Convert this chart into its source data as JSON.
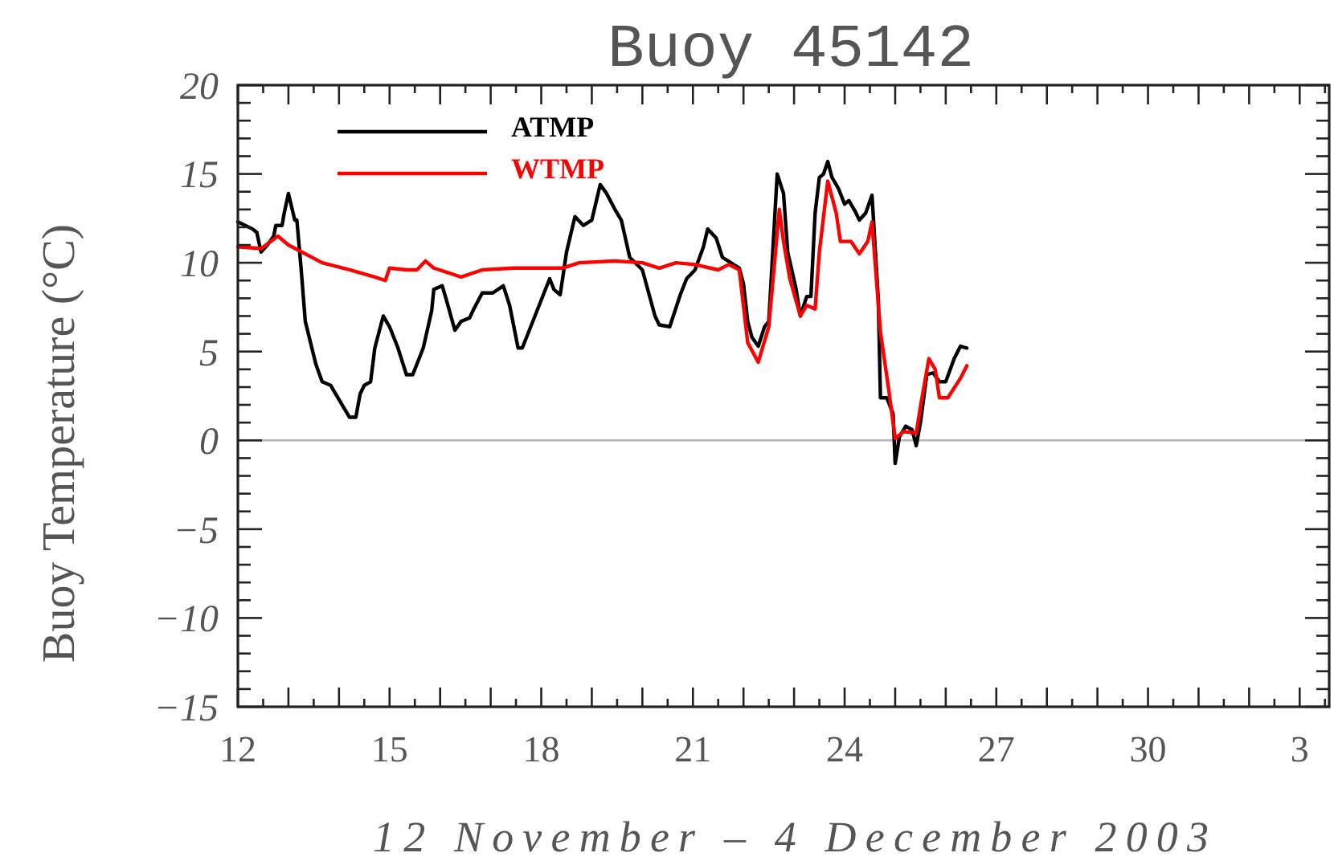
{
  "chart_data": {
    "type": "line",
    "title": "Buoy 45142",
    "xlabel": "12 November – 4 December 2003",
    "ylabel": "Buoy Temperature (°C)",
    "xlim": [
      "2003-11-12",
      "2003-12-03T14:00"
    ],
    "xticks": [
      {
        "value": "2003-11-12",
        "label": "12"
      },
      {
        "value": "2003-11-12T12:00",
        "label": null
      },
      {
        "value": "2003-11-13",
        "label": null
      },
      {
        "value": "2003-11-13T12:00",
        "label": null
      },
      {
        "value": "2003-11-14",
        "label": null
      },
      {
        "value": "2003-11-14T12:00",
        "label": null
      },
      {
        "value": "2003-11-15",
        "label": "15"
      },
      {
        "value": "2003-11-15T12:00",
        "label": null
      },
      {
        "value": "2003-11-16",
        "label": null
      },
      {
        "value": "2003-11-16T12:00",
        "label": null
      },
      {
        "value": "2003-11-17",
        "label": null
      },
      {
        "value": "2003-11-17T12:00",
        "label": null
      },
      {
        "value": "2003-11-18",
        "label": "18"
      },
      {
        "value": "2003-11-18T12:00",
        "label": null
      },
      {
        "value": "2003-11-19",
        "label": null
      },
      {
        "value": "2003-11-19T12:00",
        "label": null
      },
      {
        "value": "2003-11-20",
        "label": null
      },
      {
        "value": "2003-11-20T12:00",
        "label": null
      },
      {
        "value": "2003-11-21",
        "label": "21"
      },
      {
        "value": "2003-11-21T12:00",
        "label": null
      },
      {
        "value": "2003-11-22",
        "label": null
      },
      {
        "value": "2003-11-22T12:00",
        "label": null
      },
      {
        "value": "2003-11-23",
        "label": null
      },
      {
        "value": "2003-11-23T12:00",
        "label": null
      },
      {
        "value": "2003-11-24",
        "label": "24"
      },
      {
        "value": "2003-11-24T12:00",
        "label": null
      },
      {
        "value": "2003-11-25",
        "label": null
      },
      {
        "value": "2003-11-25T12:00",
        "label": null
      },
      {
        "value": "2003-11-26",
        "label": null
      },
      {
        "value": "2003-11-26T12:00",
        "label": null
      },
      {
        "value": "2003-11-27",
        "label": "27"
      },
      {
        "value": "2003-11-27T12:00",
        "label": null
      },
      {
        "value": "2003-11-28",
        "label": null
      },
      {
        "value": "2003-11-28T12:00",
        "label": null
      },
      {
        "value": "2003-11-29",
        "label": null
      },
      {
        "value": "2003-11-29T12:00",
        "label": null
      },
      {
        "value": "2003-11-30",
        "label": "30"
      },
      {
        "value": "2003-11-30T12:00",
        "label": null
      },
      {
        "value": "2003-12-01",
        "label": null
      },
      {
        "value": "2003-12-01T12:00",
        "label": null
      },
      {
        "value": "2003-12-02",
        "label": null
      },
      {
        "value": "2003-12-02T12:00",
        "label": null
      },
      {
        "value": "2003-12-03",
        "label": "3"
      },
      {
        "value": "2003-12-03T12:00",
        "label": null
      }
    ],
    "ylim": [
      -15,
      20
    ],
    "yticks": [
      -15,
      {
        "value": -14,
        "label": null
      },
      {
        "value": -13,
        "label": null
      },
      {
        "value": -12,
        "label": null
      },
      {
        "value": -11,
        "label": null
      },
      -10,
      {
        "value": -9,
        "label": null
      },
      {
        "value": -8,
        "label": null
      },
      {
        "value": -7,
        "label": null
      },
      {
        "value": -6,
        "label": null
      },
      -5,
      {
        "value": -4,
        "label": null
      },
      {
        "value": -3,
        "label": null
      },
      {
        "value": -2,
        "label": null
      },
      {
        "value": -1,
        "label": null
      },
      0,
      {
        "value": 1,
        "label": null
      },
      {
        "value": 2,
        "label": null
      },
      {
        "value": 3,
        "label": null
      },
      {
        "value": 4,
        "label": null
      },
      5,
      {
        "value": 6,
        "label": null
      },
      {
        "value": 7,
        "label": null
      },
      {
        "value": 8,
        "label": null
      },
      {
        "value": 9,
        "label": null
      },
      10,
      {
        "value": 11,
        "label": null
      },
      {
        "value": 12,
        "label": null
      },
      {
        "value": 13,
        "label": null
      },
      {
        "value": 14,
        "label": null
      },
      15,
      {
        "value": 16,
        "label": null
      },
      {
        "value": 17,
        "label": null
      },
      {
        "value": 18,
        "label": null
      },
      {
        "value": 19,
        "label": null
      },
      20
    ],
    "ref_lines": [
      {
        "axis": "y",
        "value": 0,
        "color": "#b4b4b4"
      }
    ],
    "legend": "top left",
    "line_style": "solid",
    "series": [
      {
        "name": "ATMP",
        "color": "#000000",
        "x": [
          "2003-11-12T00:00",
          "2003-11-12T07:00",
          "2003-11-12T09:00",
          "2003-11-12T11:00",
          "2003-11-12T14:00",
          "2003-11-12T17:00",
          "2003-11-12T18:00",
          "2003-11-12T21:00",
          "2003-11-12T22:00",
          "2003-11-13T00:00",
          "2003-11-13T03:00",
          "2003-11-13T04:00",
          "2003-11-13T06:00",
          "2003-11-13T08:00",
          "2003-11-13T13:00",
          "2003-11-13T16:00",
          "2003-11-13T20:00",
          "2003-11-14T02:00",
          "2003-11-14T05:00",
          "2003-11-14T08:00",
          "2003-11-14T10:00",
          "2003-11-14T12:00",
          "2003-11-14T15:00",
          "2003-11-14T17:00",
          "2003-11-14T21:00",
          "2003-11-15T00:00",
          "2003-11-15T04:00",
          "2003-11-15T08:00",
          "2003-11-15T11:00",
          "2003-11-15T16:00",
          "2003-11-15T20:00",
          "2003-11-15T21:00",
          "2003-11-16T01:00",
          "2003-11-16T03:00",
          "2003-11-16T07:00",
          "2003-11-16T10:00",
          "2003-11-16T14:00",
          "2003-11-16T16:00",
          "2003-11-16T20:00",
          "2003-11-17T01:00",
          "2003-11-17T06:00",
          "2003-11-17T09:00",
          "2003-11-17T13:00",
          "2003-11-17T15:00",
          "2003-11-17T21:00",
          "2003-11-18T04:00",
          "2003-11-18T06:00",
          "2003-11-18T09:00",
          "2003-11-18T12:00",
          "2003-11-18T16:00",
          "2003-11-18T20:00",
          "2003-11-19T00:00",
          "2003-11-19T04:00",
          "2003-11-19T07:00",
          "2003-11-19T11:00",
          "2003-11-19T14:00",
          "2003-11-19T18:00",
          "2003-11-20T00:00",
          "2003-11-20T06:00",
          "2003-11-20T08:00",
          "2003-11-20T13:00",
          "2003-11-20T18:00",
          "2003-11-20T21:00",
          "2003-11-21T01:00",
          "2003-11-21T05:00",
          "2003-11-21T07:00",
          "2003-11-21T11:00",
          "2003-11-21T14:00",
          "2003-11-21T18:00",
          "2003-11-21T22:00",
          "2003-11-22T00:00",
          "2003-11-22T02:00",
          "2003-11-22T04:00",
          "2003-11-22T07:00",
          "2003-11-22T10:00",
          "2003-11-22T12:00",
          "2003-11-22T16:00",
          "2003-11-22T19:00",
          "2003-11-22T21:00",
          "2003-11-23T01:00",
          "2003-11-23T03:00",
          "2003-11-23T06:00",
          "2003-11-23T08:00",
          "2003-11-23T10:00",
          "2003-11-23T12:00",
          "2003-11-23T14:00",
          "2003-11-23T16:00",
          "2003-11-23T18:00",
          "2003-11-23T21:00",
          "2003-11-24T00:00",
          "2003-11-24T02:00",
          "2003-11-24T05:00",
          "2003-11-24T07:00",
          "2003-11-24T10:00",
          "2003-11-24T13:00",
          "2003-11-24T16:00",
          "2003-11-24T17:00",
          "2003-11-24T20:00",
          "2003-11-24T23:00",
          "2003-11-25T00:00",
          "2003-11-25T02:00",
          "2003-11-25T05:00",
          "2003-11-25T08:00",
          "2003-11-25T10:00",
          "2003-11-25T12:00",
          "2003-11-25T15:00",
          "2003-11-25T18:00",
          "2003-11-25T21:00",
          "2003-11-26T00:00",
          "2003-11-26T04:00",
          "2003-11-26T07:00",
          "2003-11-26T10:00"
        ],
        "values": [
          12.3,
          11.9,
          11.7,
          10.6,
          11.0,
          11.5,
          12.1,
          12.1,
          12.8,
          13.9,
          12.4,
          12.4,
          9.7,
          6.7,
          4.3,
          3.3,
          3.1,
          1.9,
          1.3,
          1.3,
          2.6,
          3.1,
          3.3,
          5.2,
          7.0,
          6.4,
          5.2,
          3.7,
          3.7,
          5.2,
          7.3,
          8.5,
          8.7,
          7.9,
          6.2,
          6.7,
          6.9,
          7.4,
          8.3,
          8.3,
          8.7,
          7.6,
          5.2,
          5.2,
          7.0,
          9.1,
          8.5,
          8.2,
          10.6,
          12.6,
          12.1,
          12.4,
          14.4,
          13.9,
          13.0,
          12.4,
          10.3,
          9.6,
          7.0,
          6.5,
          6.4,
          8.2,
          9.1,
          9.6,
          10.9,
          11.9,
          11.4,
          10.3,
          10.0,
          9.7,
          8.8,
          6.7,
          5.8,
          5.3,
          6.4,
          6.7,
          15.0,
          13.9,
          10.6,
          8.5,
          7.0,
          8.1,
          8.1,
          12.8,
          14.8,
          15.0,
          15.7,
          14.8,
          14.2,
          13.3,
          13.5,
          12.9,
          12.4,
          12.8,
          13.8,
          7.9,
          2.4,
          2.4,
          1.5,
          -1.3,
          0.2,
          0.8,
          0.6,
          -0.3,
          1.0,
          3.7,
          3.8,
          3.3,
          3.3,
          4.6,
          5.3,
          5.2
        ]
      },
      {
        "name": "WTMP",
        "color": "#ff0000",
        "x": [
          "2003-11-12T00:00",
          "2003-11-12T11:00",
          "2003-11-12T19:00",
          "2003-11-13T00:00",
          "2003-11-13T16:00",
          "2003-11-14T05:00",
          "2003-11-14T17:00",
          "2003-11-14T22:00",
          "2003-11-15T00:00",
          "2003-11-15T08:00",
          "2003-11-15T13:00",
          "2003-11-15T17:00",
          "2003-11-15T21:00",
          "2003-11-16T10:00",
          "2003-11-16T20:00",
          "2003-11-17T11:00",
          "2003-11-18T10:00",
          "2003-11-18T18:00",
          "2003-11-19T11:00",
          "2003-11-20T00:00",
          "2003-11-20T08:00",
          "2003-11-20T16:00",
          "2003-11-21T01:00",
          "2003-11-21T12:00",
          "2003-11-21T17:00",
          "2003-11-21T22:00",
          "2003-11-22T02:00",
          "2003-11-22T07:00",
          "2003-11-22T12:00",
          "2003-11-22T17:00",
          "2003-11-22T19:00",
          "2003-11-22T22:00",
          "2003-11-23T03:00",
          "2003-11-23T06:00",
          "2003-11-23T10:00",
          "2003-11-23T12:00",
          "2003-11-23T16:00",
          "2003-11-23T20:00",
          "2003-11-23T22:00",
          "2003-11-24T03:00",
          "2003-11-24T07:00",
          "2003-11-24T11:00",
          "2003-11-24T13:00",
          "2003-11-24T17:00",
          "2003-11-24T21:00",
          "2003-11-25T00:00",
          "2003-11-25T04:00",
          "2003-11-25T10:00",
          "2003-11-25T12:00",
          "2003-11-25T16:00",
          "2003-11-25T19:00",
          "2003-11-25T21:00",
          "2003-11-26T01:00",
          "2003-11-26T07:00",
          "2003-11-26T10:00"
        ],
        "values": [
          10.9,
          10.8,
          11.5,
          11.0,
          10.0,
          9.6,
          9.2,
          9.0,
          9.7,
          9.6,
          9.6,
          10.1,
          9.7,
          9.2,
          9.6,
          9.7,
          9.7,
          10.0,
          10.1,
          10.0,
          9.7,
          10.0,
          9.9,
          9.6,
          9.9,
          9.6,
          5.5,
          4.4,
          6.4,
          13.0,
          11.2,
          9.1,
          7.0,
          7.6,
          7.4,
          10.6,
          14.6,
          12.8,
          11.2,
          11.2,
          10.5,
          11.2,
          12.3,
          6.1,
          2.8,
          0.1,
          0.5,
          0.4,
          1.9,
          4.6,
          4.0,
          2.4,
          2.4,
          3.5,
          4.2
        ]
      }
    ]
  }
}
